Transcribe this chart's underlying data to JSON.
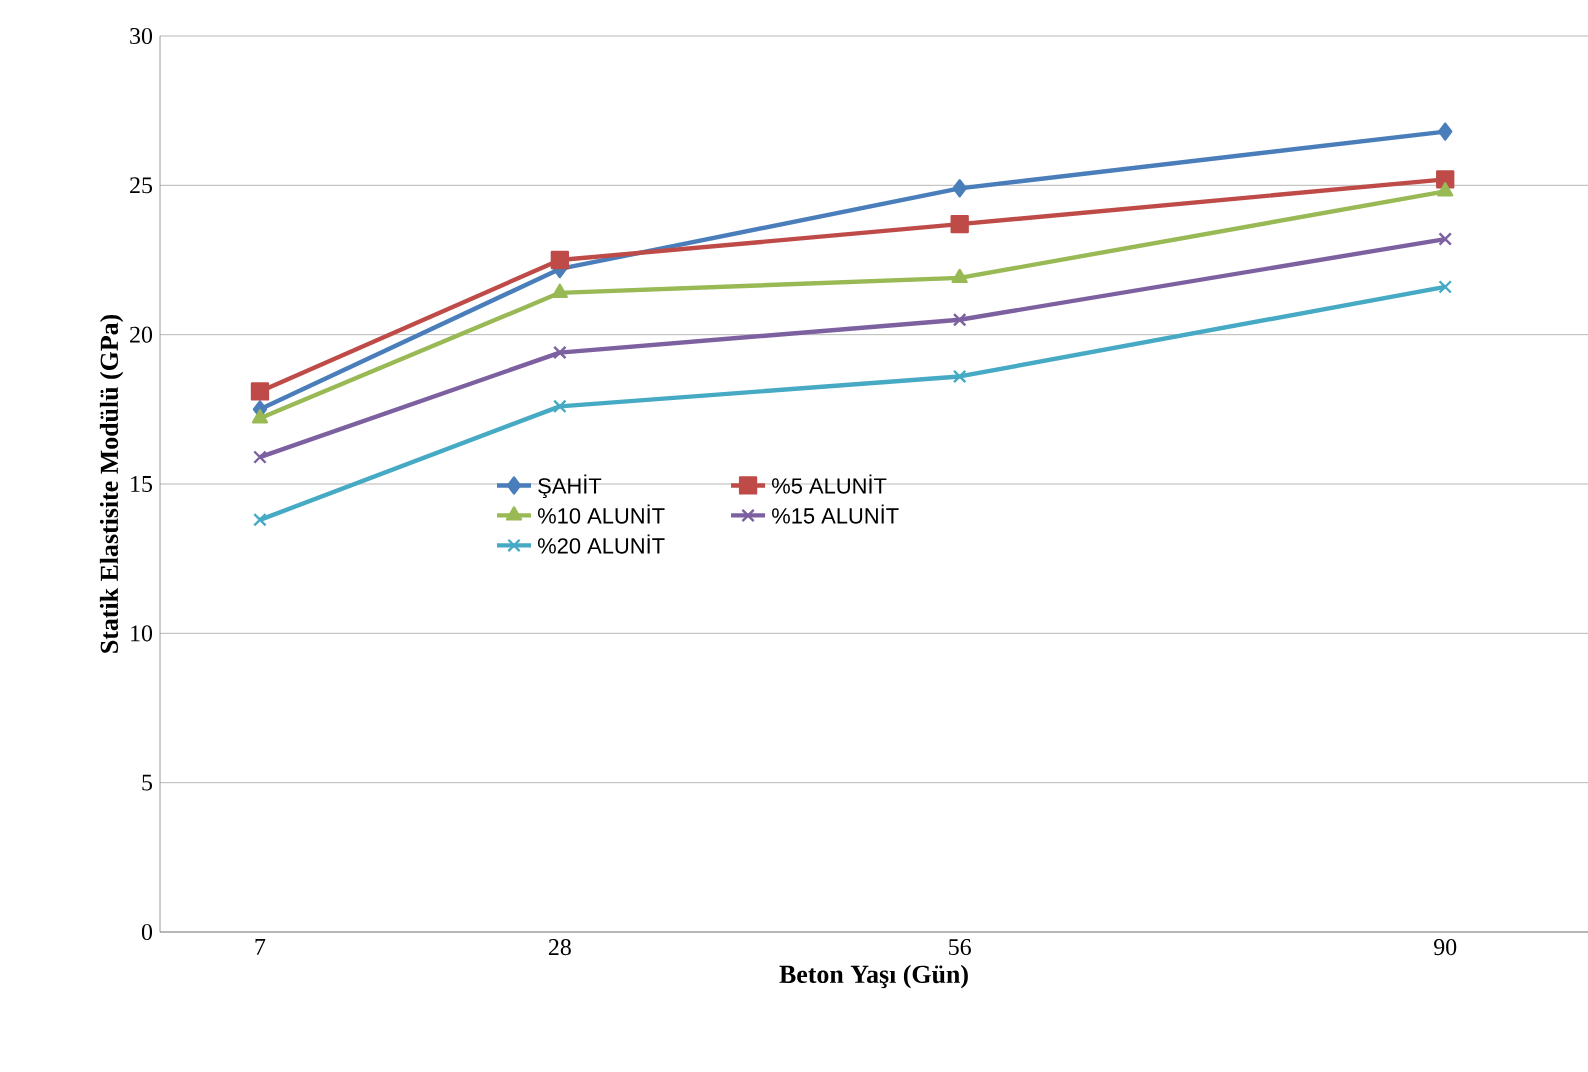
{
  "chart_data": {
    "type": "line",
    "xlabel": "Beton Yaşı (Gün)",
    "ylabel": "Statik Elastisite Modülü (GPa)",
    "x": [
      7,
      28,
      56,
      90
    ],
    "xlim": [
      0,
      100
    ],
    "xticks": [
      7,
      28,
      56,
      90
    ],
    "ylim": [
      0,
      30
    ],
    "yticks": [
      0,
      5,
      10,
      15,
      20,
      25,
      30
    ],
    "grid": "y",
    "legend": "center",
    "line_style": "solid",
    "series": [
      {
        "name": "ŞAHİT",
        "color": "#4a7ebb",
        "marker": "diamond",
        "values": [
          17.5,
          22.2,
          24.9,
          26.8
        ]
      },
      {
        "name": "%5 ALUNİT",
        "color": "#be4b48",
        "marker": "square",
        "values": [
          18.1,
          22.5,
          23.7,
          25.2
        ]
      },
      {
        "name": "%10 ALUNİT",
        "color": "#98b954",
        "marker": "triangle",
        "values": [
          17.2,
          21.4,
          21.9,
          24.8
        ]
      },
      {
        "name": "%15 ALUNİT",
        "color": "#7d60a0",
        "marker": "cross",
        "values": [
          15.9,
          19.4,
          20.5,
          23.2
        ]
      },
      {
        "name": "%20 ALUNİT",
        "color": "#46aac5",
        "marker": "cross",
        "values": [
          13.8,
          17.6,
          18.6,
          21.6
        ]
      }
    ]
  }
}
